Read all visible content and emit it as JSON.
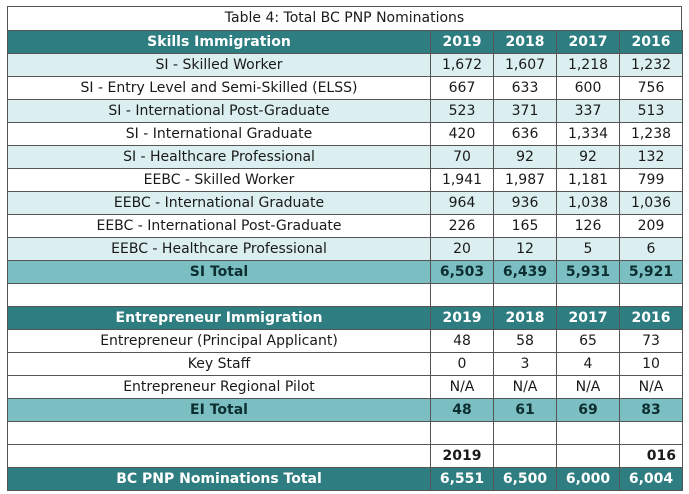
{
  "caption": "Table 4: Total BC PNP Nominations",
  "skills": {
    "header": [
      "Skills Immigration",
      "2019",
      "2018",
      "2017",
      "2016"
    ],
    "rows": [
      [
        "SI - Skilled Worker",
        "1,672",
        "1,607",
        "1,218",
        "1,232"
      ],
      [
        "SI - Entry Level and Semi-Skilled (ELSS)",
        "667",
        "633",
        "600",
        "756"
      ],
      [
        "SI - International Post-Graduate",
        "523",
        "371",
        "337",
        "513"
      ],
      [
        "SI - International Graduate",
        "420",
        "636",
        "1,334",
        "1,238"
      ],
      [
        "SI - Healthcare Professional",
        "70",
        "92",
        "92",
        "132"
      ],
      [
        "EEBC - Skilled Worker",
        "1,941",
        "1,987",
        "1,181",
        "799"
      ],
      [
        "EEBC - International Graduate",
        "964",
        "936",
        "1,038",
        "1,036"
      ],
      [
        "EEBC - International Post-Graduate",
        "226",
        "165",
        "126",
        "209"
      ],
      [
        "EEBC - Healthcare Professional",
        "20",
        "12",
        "5",
        "6"
      ]
    ],
    "total": [
      "SI Total",
      "6,503",
      "6,439",
      "5,931",
      "5,921"
    ]
  },
  "entrepreneur": {
    "header": [
      "Entrepreneur Immigration",
      "2019",
      "2018",
      "2017",
      "2016"
    ],
    "rows": [
      [
        "Entrepreneur (Principal Applicant)",
        "48",
        "58",
        "65",
        "73"
      ],
      [
        "Key Staff",
        "0",
        "3",
        "4",
        "10"
      ],
      [
        "Entrepreneur Regional Pilot",
        "N/A",
        "N/A",
        "N/A",
        "N/A"
      ]
    ],
    "total": [
      "EI Total",
      "48",
      "61",
      "69",
      "83"
    ]
  },
  "grand": {
    "years": [
      "",
      "2019",
      "",
      "",
      "016"
    ],
    "total": [
      "BC PNP Nominations Total",
      "6,551",
      "6,500",
      "6,000",
      "6,004"
    ]
  }
}
